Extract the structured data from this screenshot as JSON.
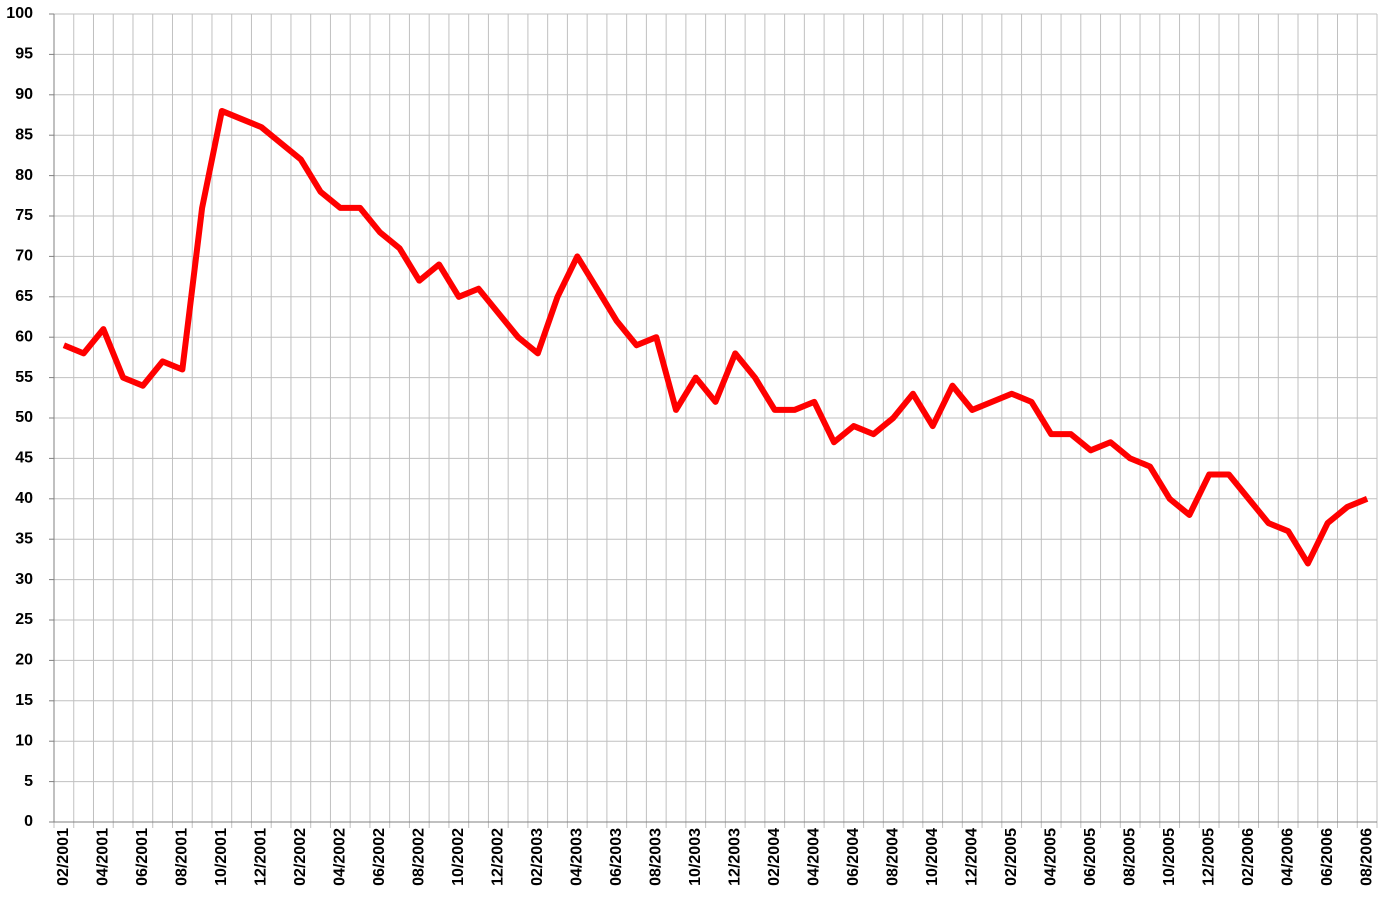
{
  "chart_data": {
    "type": "line",
    "categories": [
      "02/2001",
      null,
      "04/2001",
      null,
      "06/2001",
      null,
      "08/2001",
      null,
      "10/2001",
      null,
      "12/2001",
      null,
      "02/2002",
      null,
      "04/2002",
      null,
      "06/2002",
      null,
      "08/2002",
      null,
      "10/2002",
      null,
      "12/2002",
      null,
      "02/2003",
      null,
      "04/2003",
      null,
      "06/2003",
      null,
      "08/2003",
      null,
      "10/2003",
      null,
      "12/2003",
      null,
      "02/2004",
      null,
      "04/2004",
      null,
      "06/2004",
      null,
      "08/2004",
      null,
      "10/2004",
      null,
      "12/2004",
      null,
      "02/2005",
      null,
      "04/2005",
      null,
      "06/2005",
      null,
      "08/2005",
      null,
      "10/2005",
      null,
      "12/2005",
      null,
      "02/2006",
      null,
      "04/2006",
      null,
      "06/2006",
      null,
      "08/2006"
    ],
    "values": [
      59,
      58,
      61,
      55,
      54,
      57,
      56,
      76,
      88,
      87,
      86,
      84,
      82,
      78,
      76,
      76,
      73,
      71,
      67,
      69,
      65,
      66,
      63,
      60,
      58,
      65,
      70,
      66,
      62,
      59,
      60,
      51,
      55,
      52,
      58,
      55,
      51,
      51,
      52,
      47,
      49,
      48,
      50,
      53,
      49,
      54,
      51,
      52,
      53,
      52,
      48,
      48,
      46,
      47,
      45,
      44,
      40,
      38,
      43,
      43,
      40,
      37,
      36,
      32,
      37,
      39,
      40
    ],
    "color": "#ff0000",
    "ylim": [
      0,
      100
    ],
    "yticks": [
      0,
      5,
      10,
      15,
      20,
      25,
      30,
      35,
      40,
      45,
      50,
      55,
      60,
      65,
      70,
      75,
      80,
      85,
      90,
      95,
      100
    ],
    "grid": true
  }
}
